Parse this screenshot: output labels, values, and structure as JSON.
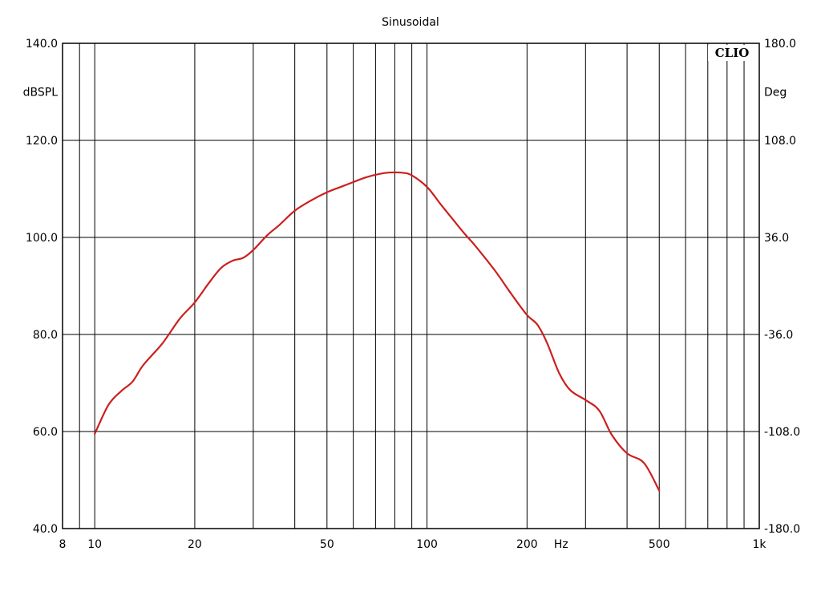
{
  "chart_data": {
    "type": "line",
    "title": "Sinusoidal",
    "brand": "CLIO",
    "xlabel": "Hz",
    "xscale": "log",
    "xlim": [
      8,
      1000
    ],
    "x_ticks": [
      {
        "value": 8,
        "label": "8"
      },
      {
        "value": 10,
        "label": "10"
      },
      {
        "value": 20,
        "label": "20"
      },
      {
        "value": 50,
        "label": "50"
      },
      {
        "value": 100,
        "label": "100"
      },
      {
        "value": 200,
        "label": "200"
      },
      {
        "value": 500,
        "label": "500"
      },
      {
        "value": 1000,
        "label": "1k"
      }
    ],
    "x_gridlines": [
      9,
      10,
      20,
      30,
      40,
      50,
      60,
      70,
      80,
      90,
      100,
      200,
      300,
      400,
      500,
      600,
      700,
      800,
      900
    ],
    "ylabel_left": "dBSPL",
    "ylim_left": [
      40,
      140
    ],
    "y_ticks_left": [
      "140.0",
      "120.0",
      "100.0",
      "80.0",
      "60.0",
      "40.0"
    ],
    "ylabel_right": "Deg",
    "ylim_right": [
      -180,
      180
    ],
    "y_ticks_right": [
      "180.0",
      "108.0",
      "36.0",
      "-36.0",
      "-108.0",
      "-180.0"
    ],
    "grid": true,
    "series": [
      {
        "color": "#cc1f1f",
        "axis": "left",
        "points": [
          [
            10,
            59.5
          ],
          [
            11,
            65.5
          ],
          [
            12,
            68.3
          ],
          [
            13,
            70.3
          ],
          [
            14,
            73.7
          ],
          [
            16,
            78.2
          ],
          [
            18,
            83.2
          ],
          [
            20,
            86.6
          ],
          [
            22,
            90.5
          ],
          [
            24,
            93.7
          ],
          [
            26,
            95.2
          ],
          [
            28,
            95.8
          ],
          [
            30,
            97.4
          ],
          [
            33,
            100.4
          ],
          [
            36,
            102.6
          ],
          [
            40,
            105.5
          ],
          [
            45,
            107.7
          ],
          [
            50,
            109.3
          ],
          [
            55,
            110.4
          ],
          [
            60,
            111.4
          ],
          [
            65,
            112.3
          ],
          [
            70,
            112.9
          ],
          [
            75,
            113.3
          ],
          [
            80,
            113.4
          ],
          [
            85,
            113.3
          ],
          [
            90,
            112.8
          ],
          [
            100,
            110.4
          ],
          [
            110,
            106.8
          ],
          [
            120,
            103.6
          ],
          [
            130,
            100.7
          ],
          [
            140,
            98.2
          ],
          [
            160,
            93.2
          ],
          [
            180,
            88.2
          ],
          [
            200,
            84.0
          ],
          [
            215,
            82.0
          ],
          [
            230,
            78.2
          ],
          [
            250,
            72.0
          ],
          [
            270,
            68.5
          ],
          [
            300,
            66.5
          ],
          [
            330,
            64.3
          ],
          [
            360,
            59.3
          ],
          [
            400,
            55.5
          ],
          [
            450,
            53.5
          ],
          [
            500,
            47.8
          ]
        ]
      }
    ]
  }
}
